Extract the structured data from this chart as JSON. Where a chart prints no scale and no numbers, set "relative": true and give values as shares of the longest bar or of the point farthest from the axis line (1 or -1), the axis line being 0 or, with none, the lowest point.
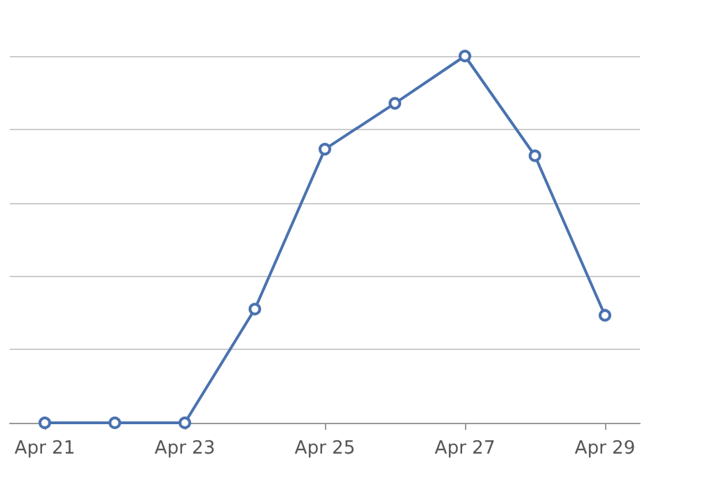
{
  "chart_data": {
    "type": "line",
    "relative": true,
    "categories": [
      "Apr 21",
      null,
      "Apr 23",
      null,
      "Apr 25",
      null,
      "Apr 27",
      null,
      "Apr 29"
    ],
    "series": [
      {
        "color": "#4a72b0",
        "values": [
          0,
          0,
          0,
          0.31,
          0.746,
          0.871,
          1,
          0.728,
          0.293
        ]
      }
    ],
    "grid": "y",
    "marker": "circle",
    "line_style": "solid"
  }
}
